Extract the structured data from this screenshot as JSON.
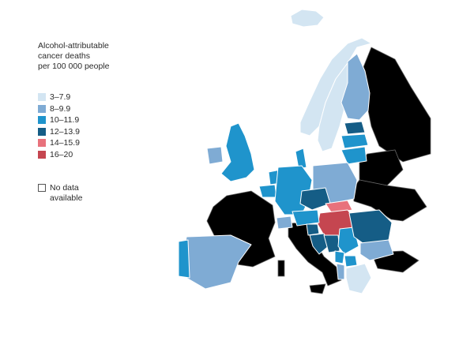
{
  "legend": {
    "title_lines": [
      "Alcohol-attributable",
      "cancer deaths",
      "per 100 000 people"
    ],
    "classes": [
      {
        "label": "3–7.9",
        "color": "#d3e5f2"
      },
      {
        "label": "8–9.9",
        "color": "#7fabd4"
      },
      {
        "label": "10–11.9",
        "color": "#1f94cc"
      },
      {
        "label": "12–13.9",
        "color": "#155d86"
      },
      {
        "label": "14–15.9",
        "color": "#e8727c"
      },
      {
        "label": "16–20",
        "color": "#c54650"
      }
    ],
    "no_data_lines": [
      "No data",
      "available"
    ],
    "no_data_color": "#ffffff"
  },
  "countries": [
    {
      "key": "iceland",
      "class": 0
    },
    {
      "key": "norway",
      "class": 0
    },
    {
      "key": "sweden",
      "class": 0
    },
    {
      "key": "finland",
      "class": 1
    },
    {
      "key": "estonia",
      "class": 3
    },
    {
      "key": "latvia",
      "class": 2
    },
    {
      "key": "lithuania",
      "class": 2
    },
    {
      "key": "denmark",
      "class": 2
    },
    {
      "key": "uk",
      "class": 2
    },
    {
      "key": "ireland",
      "class": 1
    },
    {
      "key": "netherlands",
      "class": 2
    },
    {
      "key": "belgium",
      "class": 2
    },
    {
      "key": "germany",
      "class": 2
    },
    {
      "key": "poland",
      "class": 1
    },
    {
      "key": "czechia",
      "class": 3
    },
    {
      "key": "slovakia",
      "class": 4
    },
    {
      "key": "hungary",
      "class": 5
    },
    {
      "key": "austria",
      "class": 2
    },
    {
      "key": "switzerland",
      "class": 1
    },
    {
      "key": "slovenia",
      "class": 3
    },
    {
      "key": "croatia",
      "class": 3
    },
    {
      "key": "bosnia",
      "class": 3
    },
    {
      "key": "serbia",
      "class": 2
    },
    {
      "key": "montenegro",
      "class": 2
    },
    {
      "key": "romania",
      "class": 3
    },
    {
      "key": "bulgaria",
      "class": 1
    },
    {
      "key": "north_macedonia",
      "class": 2
    },
    {
      "key": "albania",
      "class": 1
    },
    {
      "key": "greece",
      "class": 0
    },
    {
      "key": "spain",
      "class": 1
    },
    {
      "key": "portugal",
      "class": 2
    }
  ]
}
